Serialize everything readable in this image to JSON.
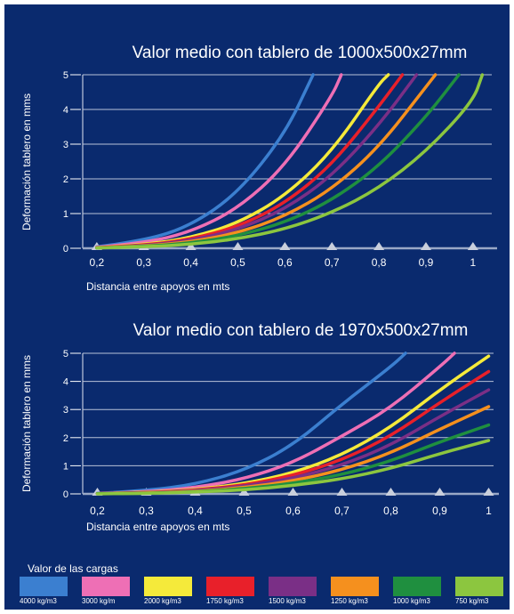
{
  "legend": {
    "title": "Valor de las cargas",
    "items": [
      {
        "label": "4000 kg/m3",
        "color": "#3b7fd0"
      },
      {
        "label": "3000 kg/m",
        "color": "#ee6fb5"
      },
      {
        "label": "2000 kg/m3",
        "color": "#f5ea3a"
      },
      {
        "label": "1750 kg/m3",
        "color": "#e8202a"
      },
      {
        "label": "1500 kg/m3",
        "color": "#7a2f86"
      },
      {
        "label": "1250 kg/m3",
        "color": "#f5901e"
      },
      {
        "label": "1000 kg/m3",
        "color": "#1f8f3f"
      },
      {
        "label": "750 kg/m3",
        "color": "#8cc63f"
      }
    ]
  },
  "chart_data": [
    {
      "type": "line",
      "title": "Valor medio con tablero de 1000x500x27mm",
      "xlabel": "Distancia entre apoyos en mts",
      "ylabel": "Deformación tablero en mms",
      "xticks": [
        "0,2",
        "0,3",
        "0,4",
        "0,5",
        "0,6",
        "0,7",
        "0,8",
        "0,9",
        "1"
      ],
      "yticks": [
        "0",
        "1",
        "2",
        "3",
        "4",
        "5"
      ],
      "xlim": [
        0.17,
        1.04
      ],
      "ylim": [
        0,
        5
      ],
      "grid": true,
      "series": [
        {
          "name": "4000 kg/m3",
          "x": [
            0.2,
            0.3,
            0.4,
            0.5,
            0.6,
            0.66
          ],
          "y": [
            0.04,
            0.21,
            0.65,
            1.59,
            3.29,
            5.0
          ]
        },
        {
          "name": "3000 kg/m",
          "x": [
            0.2,
            0.3,
            0.4,
            0.5,
            0.6,
            0.7,
            0.72
          ],
          "y": [
            0.03,
            0.15,
            0.47,
            1.14,
            2.36,
            4.38,
            5.0
          ]
        },
        {
          "name": "2000 kg/m3",
          "x": [
            0.2,
            0.3,
            0.4,
            0.5,
            0.6,
            0.7,
            0.8,
            0.82
          ],
          "y": [
            0.02,
            0.1,
            0.3,
            0.72,
            1.5,
            2.78,
            4.74,
            5.0
          ]
        },
        {
          "name": "1750 kg/m3",
          "x": [
            0.2,
            0.3,
            0.4,
            0.5,
            0.6,
            0.7,
            0.8,
            0.85
          ],
          "y": [
            0.02,
            0.08,
            0.26,
            0.62,
            1.29,
            2.4,
            4.09,
            5.0
          ]
        },
        {
          "name": "1500 kg/m3",
          "x": [
            0.2,
            0.3,
            0.4,
            0.5,
            0.6,
            0.7,
            0.8,
            0.88
          ],
          "y": [
            0.01,
            0.07,
            0.22,
            0.54,
            1.12,
            2.08,
            3.55,
            5.0
          ]
        },
        {
          "name": "1250 kg/m3",
          "x": [
            0.2,
            0.3,
            0.4,
            0.5,
            0.6,
            0.7,
            0.8,
            0.9,
            0.92
          ],
          "y": [
            0.01,
            0.06,
            0.18,
            0.44,
            0.92,
            1.7,
            2.91,
            4.65,
            5.0
          ]
        },
        {
          "name": "1000 kg/m3",
          "x": [
            0.2,
            0.3,
            0.4,
            0.5,
            0.6,
            0.7,
            0.8,
            0.9,
            0.97
          ],
          "y": [
            0.01,
            0.05,
            0.15,
            0.36,
            0.74,
            1.38,
            2.36,
            3.78,
            5.0
          ]
        },
        {
          "name": "750 kg/m3",
          "x": [
            0.2,
            0.3,
            0.4,
            0.5,
            0.6,
            0.7,
            0.8,
            0.9,
            1.0,
            1.02
          ],
          "y": [
            0.01,
            0.04,
            0.11,
            0.27,
            0.55,
            1.02,
            1.73,
            2.78,
            4.23,
            5.0
          ]
        }
      ]
    },
    {
      "type": "line",
      "title": "Valor medio con tablero de 1970x500x27mm",
      "xlabel": "Distancia entre apoyos en mts",
      "ylabel": "Deformación tablero en mms",
      "xticks": [
        "0,2",
        "0,3",
        "0,4",
        "0,5",
        "0,6",
        "0,7",
        "0,8",
        "0,9",
        "1"
      ],
      "yticks": [
        "0",
        "1",
        "2",
        "3",
        "4",
        "5"
      ],
      "xlim": [
        0.17,
        1.01
      ],
      "ylim": [
        0,
        5
      ],
      "grid": true,
      "series": [
        {
          "name": "4000 kg/m3",
          "x": [
            0.2,
            0.3,
            0.4,
            0.5,
            0.6,
            0.7,
            0.8,
            0.83
          ],
          "y": [
            0.02,
            0.11,
            0.34,
            0.83,
            1.72,
            3.19,
            4.52,
            5.0
          ]
        },
        {
          "name": "3000 kg/m",
          "x": [
            0.2,
            0.3,
            0.4,
            0.5,
            0.6,
            0.7,
            0.8,
            0.9,
            0.93
          ],
          "y": [
            0.01,
            0.07,
            0.22,
            0.53,
            1.1,
            2.05,
            3.06,
            4.52,
            5.0
          ]
        },
        {
          "name": "2000 kg/m3",
          "x": [
            0.2,
            0.3,
            0.4,
            0.5,
            0.6,
            0.7,
            0.8,
            0.9,
            1.0
          ],
          "y": [
            0.01,
            0.05,
            0.15,
            0.36,
            0.74,
            1.38,
            2.36,
            3.7,
            4.9
          ]
        },
        {
          "name": "1750 kg/m3",
          "x": [
            0.2,
            0.3,
            0.4,
            0.5,
            0.6,
            0.7,
            0.8,
            0.9,
            1.0
          ],
          "y": [
            0.01,
            0.04,
            0.13,
            0.31,
            0.65,
            1.2,
            2.05,
            3.25,
            4.35
          ]
        },
        {
          "name": "1500 kg/m3",
          "x": [
            0.2,
            0.3,
            0.4,
            0.5,
            0.6,
            0.7,
            0.8,
            0.9,
            1.0
          ],
          "y": [
            0.01,
            0.04,
            0.11,
            0.27,
            0.55,
            1.02,
            1.73,
            2.75,
            3.7
          ]
        },
        {
          "name": "1250 kg/m3",
          "x": [
            0.2,
            0.3,
            0.4,
            0.5,
            0.6,
            0.7,
            0.8,
            0.9,
            1.0
          ],
          "y": [
            0.01,
            0.03,
            0.09,
            0.22,
            0.46,
            0.85,
            1.45,
            2.3,
            3.1
          ]
        },
        {
          "name": "1000 kg/m3",
          "x": [
            0.2,
            0.3,
            0.4,
            0.5,
            0.6,
            0.7,
            0.8,
            0.9,
            1.0
          ],
          "y": [
            0.01,
            0.02,
            0.07,
            0.18,
            0.37,
            0.68,
            1.16,
            1.85,
            2.45
          ]
        },
        {
          "name": "750 kg/m3",
          "x": [
            0.2,
            0.3,
            0.4,
            0.5,
            0.6,
            0.7,
            0.8,
            0.9,
            1.0
          ],
          "y": [
            0.0,
            0.02,
            0.06,
            0.14,
            0.29,
            0.53,
            0.9,
            1.43,
            1.9
          ]
        }
      ]
    }
  ]
}
